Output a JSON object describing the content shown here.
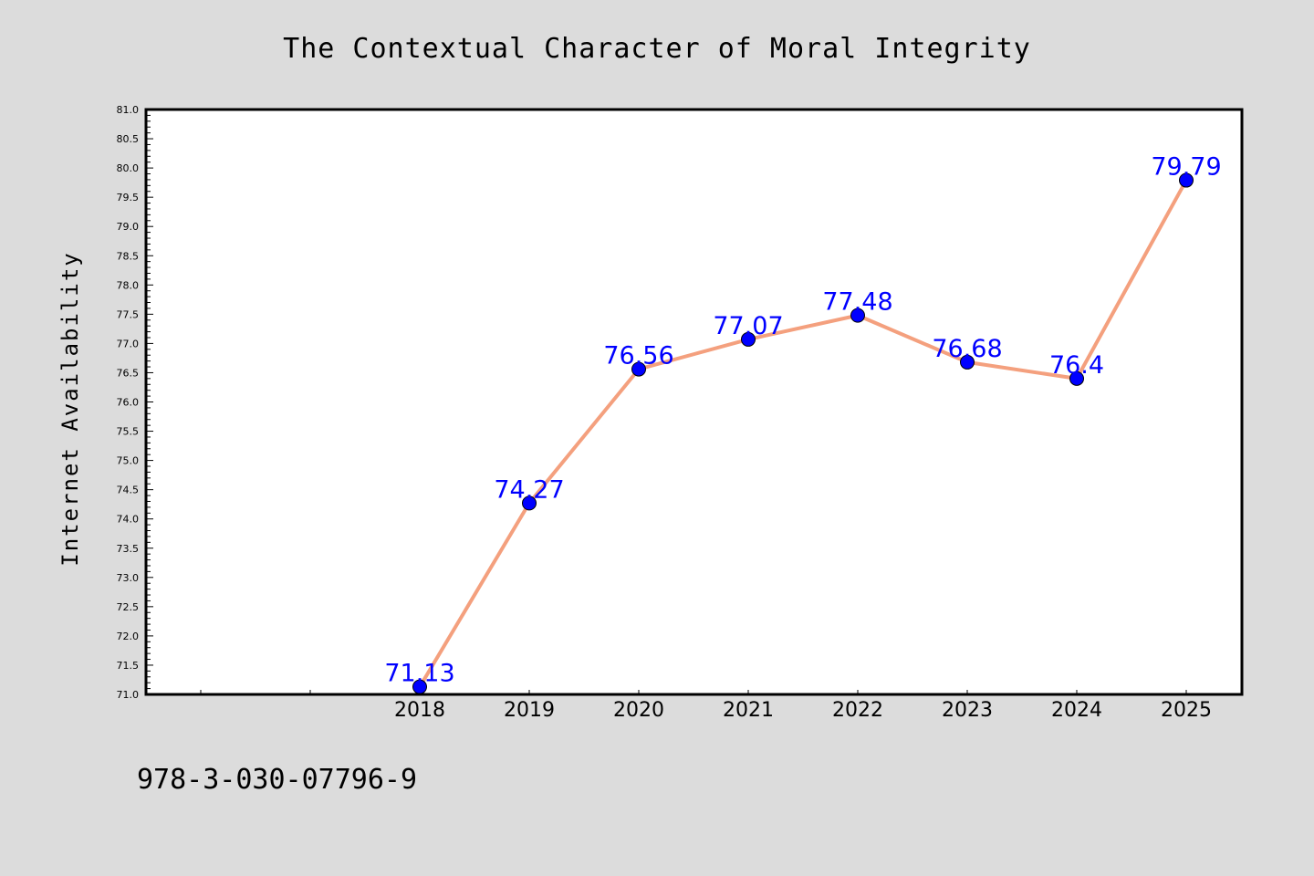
{
  "chart_data": {
    "type": "line",
    "title": "The Contextual Character of Moral Integrity",
    "xlabel": "",
    "ylabel": "Internet Availability",
    "categories": [
      "2018",
      "2019",
      "2020",
      "2021",
      "2022",
      "2023",
      "2024",
      "2025"
    ],
    "series": [
      {
        "values": [
          71.13,
          74.27,
          76.56,
          77.07,
          77.48,
          76.68,
          76.4,
          79.79
        ],
        "labels": [
          "71.13",
          "74.27",
          "76.56",
          "77.07",
          "77.48",
          "76.68",
          "76.4",
          "79.79"
        ]
      }
    ],
    "ylim": [
      71.0,
      81.0
    ],
    "yticks": [
      "71.0",
      "71.5",
      "72.0",
      "72.5",
      "73.0",
      "73.5",
      "74.0",
      "74.5",
      "75.0",
      "75.5",
      "76.0",
      "76.5",
      "77.0",
      "77.5",
      "78.0",
      "78.5",
      "79.0",
      "79.5",
      "80.0",
      "80.5",
      "81.0"
    ],
    "grid": false,
    "legend": "none",
    "colors": {
      "line": "#f4a07e",
      "marker": "#0000ff",
      "data_label": "#0000ff",
      "plot_background": "#ffffff",
      "figure_background": "#dcdcdc"
    }
  },
  "footer": {
    "isbn": "978-3-030-07796-9"
  }
}
